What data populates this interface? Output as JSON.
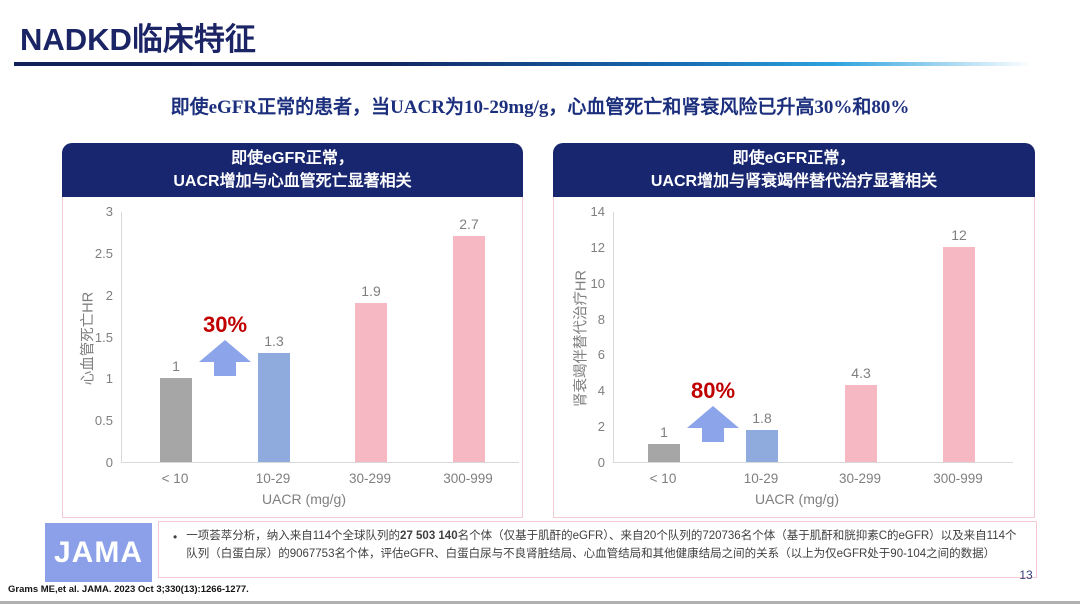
{
  "page": {
    "title": "NADKD临床特征",
    "subtitle": "即使eGFR正常的患者，当UACR为10-29mg/g，心血管死亡和肾衰风险已升高30%和80%",
    "page_number": "13",
    "citation": "Grams ME,et al. JAMA. 2023 Oct 3;330(13):1266-1277."
  },
  "footnote": {
    "logo": "JAMA",
    "bullet": "•",
    "text_before_bold": "一项荟萃分析，纳入来自114个全球队列的",
    "text_bold": "27 503 140",
    "text_after_bold": "名个体（仅基于肌酐的eGFR）、来自20个队列的720736名个体（基于肌酐和胱抑素C的eGFR）以及来自114个队列（白蛋白尿）的9067753名个体，评估eGFR、白蛋白尿与不良肾脏结局、心血管结局和其他健康结局之间的关系（以上为仅eGFR处于90-104之间的数据）"
  },
  "colors": {
    "navy_header": "#17266f",
    "bar_gray": "#a6a6a6",
    "bar_blue": "#8faadc",
    "bar_pink": "#f6b8c3",
    "arrow_blue": "#8ba4ea",
    "annotation_red": "#c00000",
    "axis_gray": "#7f7f7f"
  },
  "chart_data": [
    {
      "type": "bar",
      "title_line1": "即使eGFR正常，",
      "title_line2": "UACR增加与心血管死亡显著相关",
      "categories": [
        "< 10",
        "10-29",
        "30-299",
        "300-999"
      ],
      "values": [
        1,
        1.3,
        1.9,
        2.7
      ],
      "value_labels": [
        "1",
        "1.3",
        "1.9",
        "2.7"
      ],
      "bar_colors": [
        "#a6a6a6",
        "#8faadc",
        "#f6b8c3",
        "#f6b8c3"
      ],
      "ylabel": "心血管死亡HR",
      "xlabel": "UACR  (mg/g)",
      "ylim": [
        0,
        3
      ],
      "yticks": [
        0,
        0.5,
        1,
        1.5,
        2,
        2.5,
        3
      ],
      "ytick_labels": [
        "0",
        "0.5",
        "1",
        "1.5",
        "2",
        "2.5",
        "3"
      ],
      "grid": false,
      "legend": false,
      "annotation": "30%"
    },
    {
      "type": "bar",
      "title_line1": "即使eGFR正常，",
      "title_line2": "UACR增加与肾衰竭伴替代治疗显著相关",
      "categories": [
        "< 10",
        "10-29",
        "30-299",
        "300-999"
      ],
      "values": [
        1,
        1.8,
        4.3,
        12
      ],
      "value_labels": [
        "1",
        "1.8",
        "4.3",
        "12"
      ],
      "bar_colors": [
        "#a6a6a6",
        "#8faadc",
        "#f6b8c3",
        "#f6b8c3"
      ],
      "ylabel": "肾衰竭伴替代治疗HR",
      "xlabel": "UACR  (mg/g)",
      "ylim": [
        0,
        14
      ],
      "yticks": [
        0,
        2,
        4,
        6,
        8,
        10,
        12,
        14
      ],
      "ytick_labels": [
        "0",
        "2",
        "4",
        "6",
        "8",
        "10",
        "12",
        "14"
      ],
      "grid": false,
      "legend": false,
      "annotation": "80%"
    }
  ]
}
